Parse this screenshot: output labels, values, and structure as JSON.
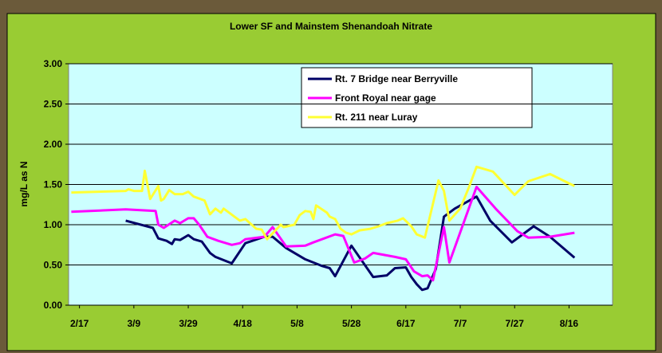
{
  "chart_data": {
    "type": "line",
    "title": "Lower SF and Mainstem Shenandoah Nitrate",
    "y_label": "mg/L as N",
    "xlim": [
      "2/13",
      "9/1"
    ],
    "xticks": [
      "2/17",
      "3/9",
      "3/29",
      "4/18",
      "5/8",
      "5/28",
      "6/17",
      "7/7",
      "7/27",
      "8/16"
    ],
    "ylim": [
      0,
      3
    ],
    "yticks": [
      {
        "value": 0,
        "label": "0.00"
      },
      {
        "value": 0.5,
        "label": "0.50"
      },
      {
        "value": 1,
        "label": "1.00"
      },
      {
        "value": 1.5,
        "label": "1.50"
      },
      {
        "value": 2,
        "label": "2.00"
      },
      {
        "value": 2.5,
        "label": "2.50"
      },
      {
        "value": 3,
        "label": "3.00"
      }
    ],
    "grid": true,
    "legend": "top-right",
    "series": [
      {
        "name": "Rt. 7 Bridge near Berryville",
        "color": "#000066",
        "x": [
          "3/6",
          "3/16",
          "3/18",
          "3/21",
          "3/23",
          "3/24",
          "3/26",
          "3/29",
          "3/31",
          "4/3",
          "4/6",
          "4/8",
          "4/14",
          "4/19",
          "4/26",
          "4/29",
          "5/4",
          "5/11",
          "5/17",
          "5/20",
          "5/22",
          "5/28",
          "6/5",
          "6/10",
          "6/13",
          "6/17",
          "6/19",
          "6/21",
          "6/23",
          "6/25",
          "6/28",
          "7/1",
          "7/5",
          "7/13",
          "7/18",
          "7/26",
          "8/3",
          "8/9",
          "8/18"
        ],
        "values": [
          1.05,
          0.96,
          0.83,
          0.8,
          0.76,
          0.82,
          0.81,
          0.87,
          0.82,
          0.79,
          0.65,
          0.6,
          0.52,
          0.77,
          0.85,
          0.85,
          0.71,
          0.57,
          0.49,
          0.46,
          0.36,
          0.74,
          0.35,
          0.37,
          0.46,
          0.47,
          0.35,
          0.26,
          0.19,
          0.21,
          0.45,
          1.1,
          1.2,
          1.35,
          1.05,
          0.78,
          0.98,
          0.85,
          0.59
        ]
      },
      {
        "name": "Front Royal near gage",
        "color": "#ff00ff",
        "x": [
          "2/14",
          "3/6",
          "3/17",
          "3/18",
          "3/20",
          "3/24",
          "3/26",
          "3/29",
          "3/31",
          "4/2",
          "4/5",
          "4/9",
          "4/14",
          "4/17",
          "4/19",
          "4/26",
          "4/29",
          "5/4",
          "5/11",
          "5/14",
          "5/22",
          "5/25",
          "5/29",
          "6/2",
          "6/5",
          "6/13",
          "6/17",
          "6/20",
          "6/23",
          "6/25",
          "6/27",
          "7/1",
          "7/3",
          "7/13",
          "7/20",
          "7/28",
          "8/1",
          "8/9",
          "8/18"
        ],
        "values": [
          1.16,
          1.19,
          1.17,
          1.0,
          0.96,
          1.05,
          1.02,
          1.08,
          1.08,
          1.0,
          0.85,
          0.8,
          0.75,
          0.77,
          0.82,
          0.85,
          0.97,
          0.73,
          0.74,
          0.78,
          0.88,
          0.86,
          0.53,
          0.58,
          0.65,
          0.6,
          0.57,
          0.42,
          0.36,
          0.37,
          0.31,
          0.97,
          0.53,
          1.47,
          1.2,
          0.92,
          0.84,
          0.85,
          0.9
        ]
      },
      {
        "name": "Rt. 211 near Luray",
        "color": "#ffff33",
        "x": [
          "2/14",
          "3/6",
          "3/7",
          "3/9",
          "3/12",
          "3/13",
          "3/15",
          "3/18",
          "3/19",
          "3/20",
          "3/22",
          "3/24",
          "3/27",
          "3/29",
          "3/31",
          "4/4",
          "4/6",
          "4/8",
          "4/10",
          "4/11",
          "4/15",
          "4/17",
          "4/19",
          "4/23",
          "4/25",
          "4/27",
          "5/2",
          "5/3",
          "5/7",
          "5/9",
          "5/11",
          "5/13",
          "5/14",
          "5/15",
          "5/19",
          "5/20",
          "5/22",
          "5/24",
          "5/26",
          "5/28",
          "5/31",
          "6/4",
          "6/7",
          "6/10",
          "6/14",
          "6/16",
          "6/19",
          "6/21",
          "6/24",
          "6/29",
          "7/1",
          "7/3",
          "7/7",
          "7/10",
          "7/13",
          "7/19",
          "7/27",
          "8/1",
          "8/9",
          "8/18"
        ],
        "values": [
          1.4,
          1.42,
          1.44,
          1.42,
          1.42,
          1.67,
          1.32,
          1.48,
          1.3,
          1.32,
          1.43,
          1.38,
          1.38,
          1.41,
          1.35,
          1.3,
          1.13,
          1.2,
          1.15,
          1.2,
          1.1,
          1.05,
          1.07,
          0.95,
          0.94,
          0.82,
          1.0,
          0.97,
          1.0,
          1.12,
          1.17,
          1.16,
          1.07,
          1.24,
          1.15,
          1.1,
          1.07,
          0.95,
          0.9,
          0.88,
          0.93,
          0.95,
          0.98,
          1.02,
          1.05,
          1.08,
          0.98,
          0.88,
          0.84,
          1.55,
          1.42,
          1.05,
          1.2,
          1.45,
          1.72,
          1.66,
          1.37,
          1.54,
          1.63,
          1.48
        ]
      }
    ]
  }
}
